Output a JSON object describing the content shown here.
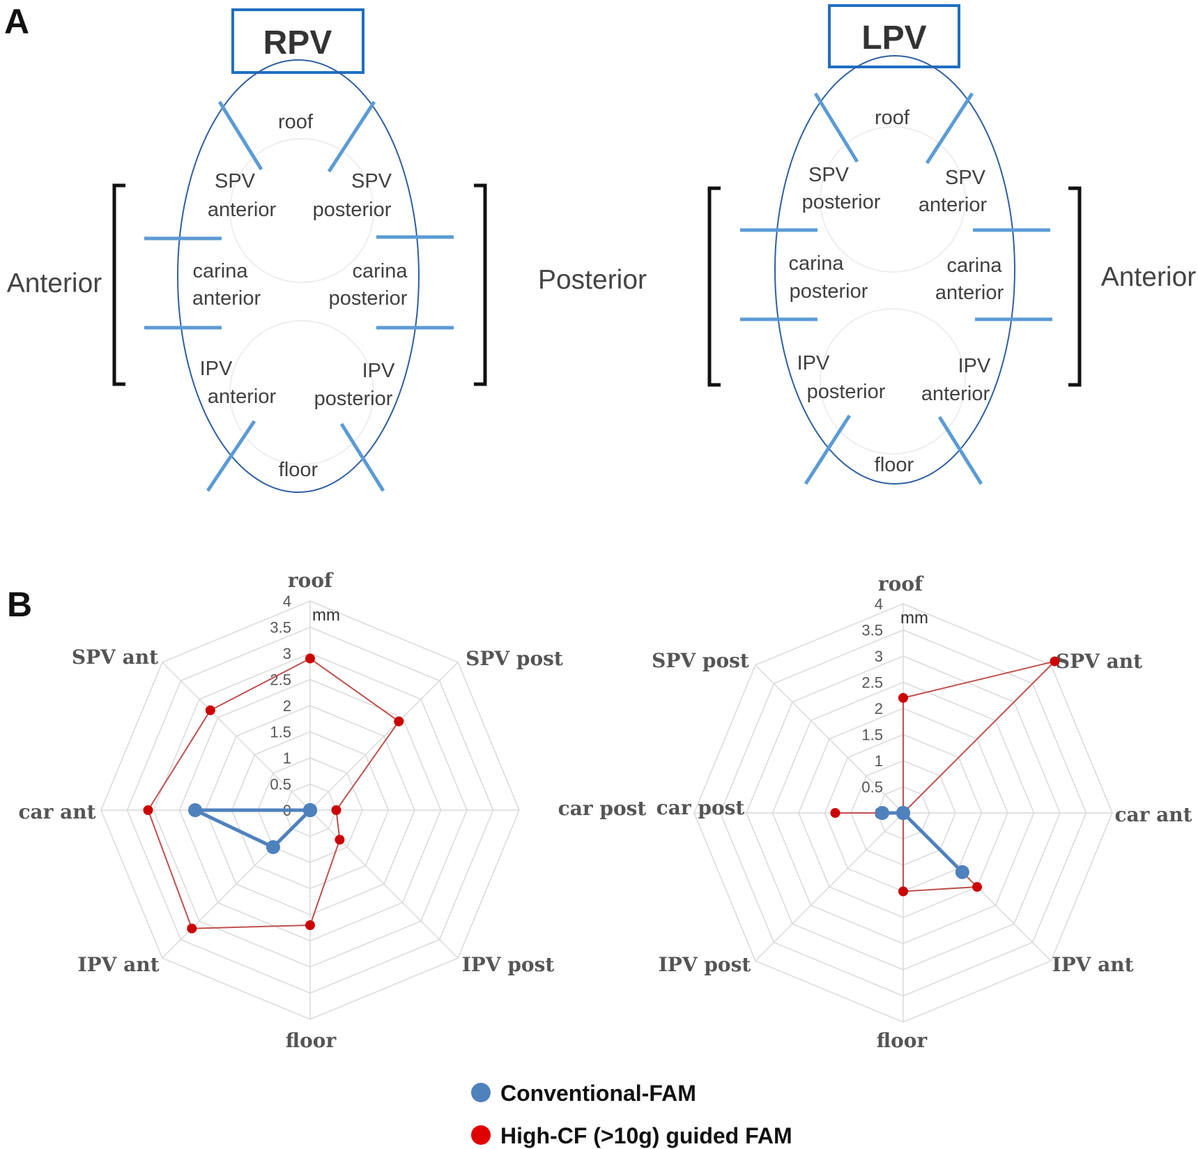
{
  "panel_a": {
    "letter": "A",
    "diagrams": [
      {
        "title": "RPV",
        "left_side": "Anterior",
        "right_side": "Posterior",
        "labels": {
          "roof": "roof",
          "upper_left": [
            "SPV",
            "anterior"
          ],
          "upper_right": [
            "SPV",
            "posterior"
          ],
          "mid_left": [
            "carina",
            "anterior"
          ],
          "mid_right": [
            "carina",
            "posterior"
          ],
          "lower_left": [
            "IPV",
            "anterior"
          ],
          "lower_right": [
            "IPV",
            "posterior"
          ],
          "floor": "floor"
        }
      },
      {
        "title": "LPV",
        "right_side": "Anterior",
        "labels": {
          "roof": "roof",
          "upper_left": [
            "SPV",
            "posterior"
          ],
          "upper_right": [
            "SPV",
            "anterior"
          ],
          "mid_left": [
            "carina",
            "posterior"
          ],
          "mid_right": [
            "carina",
            "anterior"
          ],
          "lower_left": [
            "IPV",
            "posterior"
          ],
          "lower_right": [
            "IPV",
            "anterior"
          ],
          "floor": "floor"
        }
      }
    ]
  },
  "panel_b": {
    "letter": "B",
    "unit": "mm",
    "legend": [
      "Conventional-FAM",
      "High-CF (>10g) guided FAM"
    ]
  },
  "colors": {
    "conventional": "#4f81bd",
    "high_cf": "#c0504d",
    "marker_high_cf": "#cc0000",
    "legend_high_cf": "#e00000",
    "boundary": "#5b9bd5",
    "oval": "#2e5fa0",
    "box": "#1f6fc0",
    "grid": "#d9d9d9"
  },
  "chart_data": [
    {
      "type": "radar",
      "vein": "RPV",
      "categories": [
        "roof",
        "SPV post",
        "car post",
        "IPV post",
        "floor",
        "IPV ant",
        "car ant",
        "SPV ant"
      ],
      "ticks": [
        "0",
        "0.5",
        "1",
        "1.5",
        "2",
        "2.5",
        "3",
        "3.5",
        "4"
      ],
      "range": [
        0,
        4
      ],
      "unit": "mm",
      "series": [
        {
          "name": "Conventional-FAM",
          "values": [
            0,
            0,
            0,
            0,
            0,
            1,
            2.2,
            0
          ]
        },
        {
          "name": "High-CF (>10g) guided FAM",
          "values": [
            2.9,
            2.4,
            0.5,
            0.8,
            2.2,
            3.2,
            3.1,
            2.7
          ]
        }
      ]
    },
    {
      "type": "radar",
      "vein": "LPV",
      "categories": [
        "roof",
        "SPV ant",
        "car ant",
        "IPV ant",
        "floor",
        "IPV post",
        "car post",
        "SPV post"
      ],
      "ticks": [
        "0",
        "0.5",
        "1",
        "1.5",
        "2",
        "2.5",
        "3",
        "3.5",
        "4"
      ],
      "range": [
        0,
        4
      ],
      "unit": "mm",
      "series": [
        {
          "name": "Conventional-FAM",
          "values": [
            0,
            0,
            0,
            1.6,
            0,
            0,
            0.4,
            0
          ]
        },
        {
          "name": "High-CF (>10g) guided FAM",
          "values": [
            2.2,
            4.1,
            0,
            2.0,
            1.5,
            0,
            1.3,
            0
          ]
        }
      ]
    }
  ]
}
